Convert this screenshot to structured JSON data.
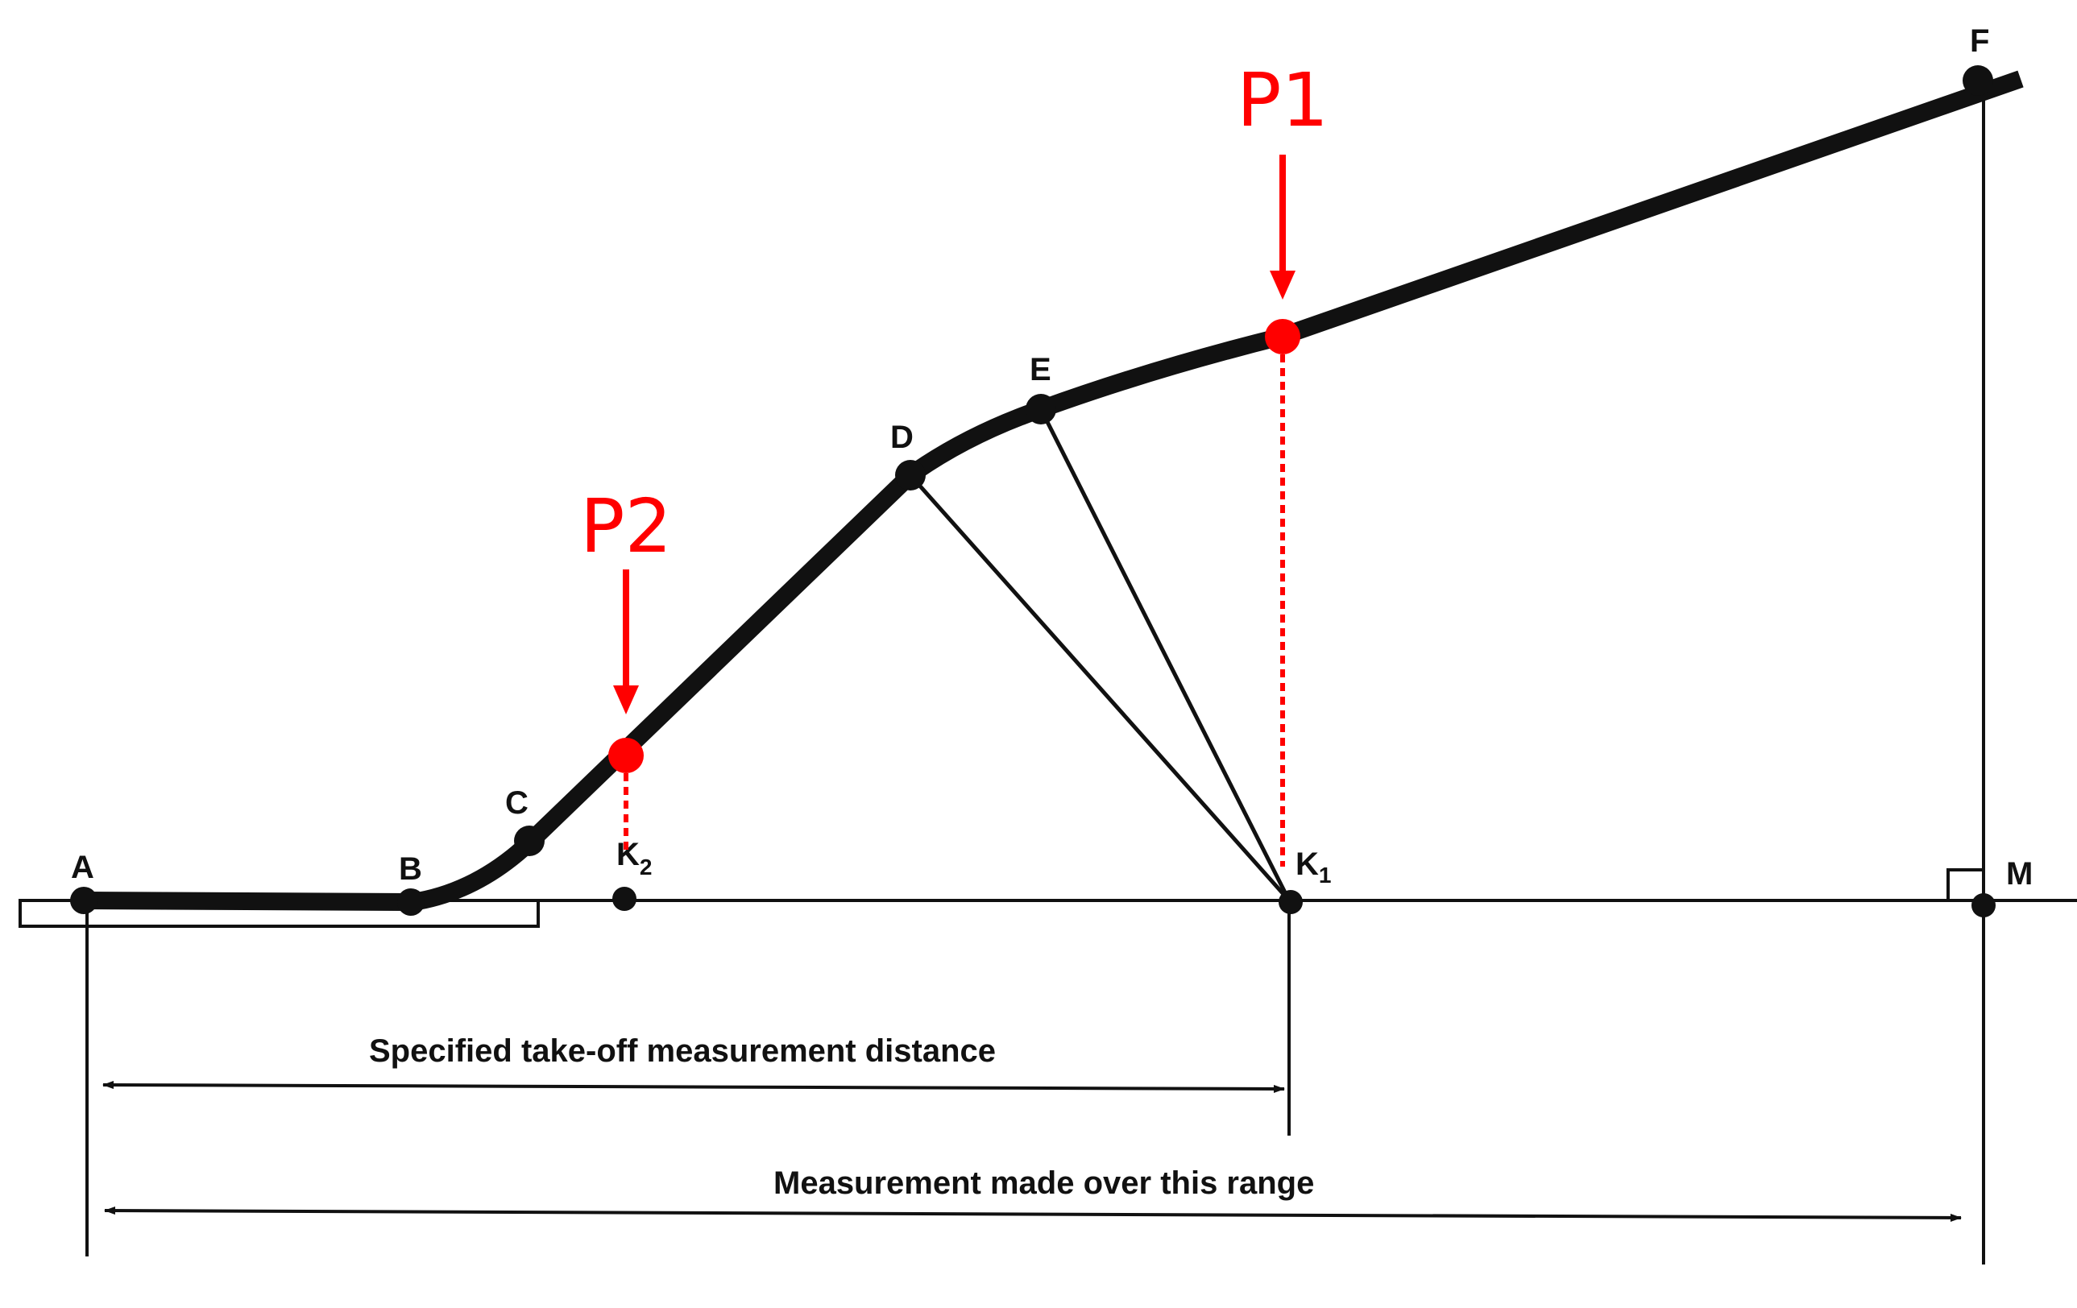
{
  "labels": {
    "A": "A",
    "B": "B",
    "C": "C",
    "D": "D",
    "E": "E",
    "F": "F",
    "M": "M",
    "K1_main": "K",
    "K1_sub": "1",
    "K2_main": "K",
    "K2_sub": "2",
    "P1": "P1",
    "P2": "P2"
  },
  "dimensions": {
    "takeoff_distance": "Specified take-off measurement distance",
    "measurement_range": "Measurement made over this range"
  },
  "colors": {
    "ink": "#111111",
    "highlight": "#ff0000",
    "background": "#ffffff"
  }
}
